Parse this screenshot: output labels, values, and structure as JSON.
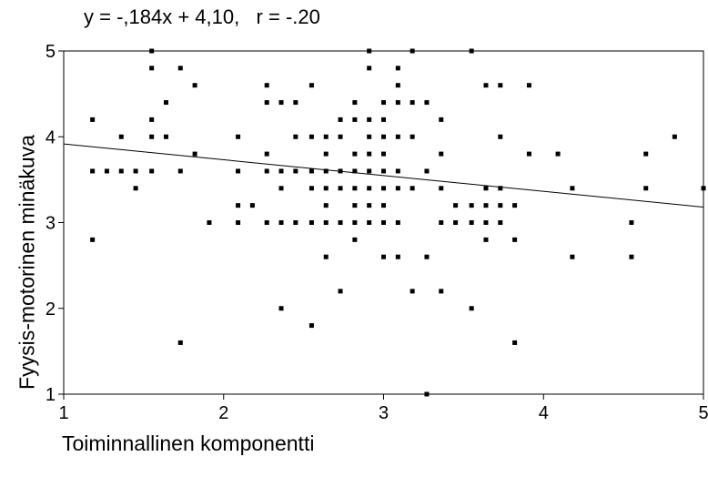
{
  "chart_data": {
    "type": "scatter",
    "title": "y = -,184x + 4,10,   r = -.20",
    "xlabel": "Toiminnallinen komponentti",
    "ylabel": "Fyysis-motorinen minäkuva",
    "xlim": [
      1,
      5
    ],
    "ylim": [
      1,
      5
    ],
    "x_ticks": [
      "1",
      "2",
      "3",
      "4",
      "5"
    ],
    "y_ticks": [
      "1",
      "2",
      "3",
      "4",
      "5"
    ],
    "grid": false,
    "regression": {
      "slope": -0.184,
      "intercept": 4.1
    },
    "points": [
      [
        1.18,
        4.2
      ],
      [
        1.18,
        3.6
      ],
      [
        1.18,
        2.8
      ],
      [
        1.27,
        3.6
      ],
      [
        1.36,
        4.0
      ],
      [
        1.36,
        3.6
      ],
      [
        1.45,
        3.6
      ],
      [
        1.45,
        3.4
      ],
      [
        1.55,
        5.0
      ],
      [
        1.55,
        4.8
      ],
      [
        1.55,
        4.2
      ],
      [
        1.55,
        4.0
      ],
      [
        1.55,
        3.6
      ],
      [
        1.64,
        4.4
      ],
      [
        1.64,
        4.0
      ],
      [
        1.73,
        4.8
      ],
      [
        1.73,
        3.6
      ],
      [
        1.73,
        1.6
      ],
      [
        1.82,
        4.6
      ],
      [
        1.82,
        3.8
      ],
      [
        1.91,
        3.0
      ],
      [
        2.09,
        4.0
      ],
      [
        2.09,
        3.6
      ],
      [
        2.09,
        3.2
      ],
      [
        2.09,
        3.0
      ],
      [
        2.18,
        3.2
      ],
      [
        2.27,
        4.6
      ],
      [
        2.27,
        4.4
      ],
      [
        2.27,
        3.8
      ],
      [
        2.27,
        3.6
      ],
      [
        2.27,
        3.0
      ],
      [
        2.36,
        4.4
      ],
      [
        2.36,
        3.6
      ],
      [
        2.36,
        3.4
      ],
      [
        2.36,
        3.0
      ],
      [
        2.36,
        2.0
      ],
      [
        2.45,
        4.4
      ],
      [
        2.45,
        4.0
      ],
      [
        2.45,
        3.6
      ],
      [
        2.45,
        3.0
      ],
      [
        2.55,
        4.6
      ],
      [
        2.55,
        4.0
      ],
      [
        2.55,
        3.6
      ],
      [
        2.55,
        3.4
      ],
      [
        2.55,
        3.0
      ],
      [
        2.55,
        1.8
      ],
      [
        2.64,
        4.0
      ],
      [
        2.64,
        3.8
      ],
      [
        2.64,
        3.6
      ],
      [
        2.64,
        3.4
      ],
      [
        2.64,
        3.2
      ],
      [
        2.64,
        3.0
      ],
      [
        2.64,
        2.6
      ],
      [
        2.73,
        4.2
      ],
      [
        2.73,
        4.0
      ],
      [
        2.73,
        3.6
      ],
      [
        2.73,
        3.4
      ],
      [
        2.73,
        3.0
      ],
      [
        2.73,
        2.2
      ],
      [
        2.82,
        4.4
      ],
      [
        2.82,
        4.2
      ],
      [
        2.82,
        3.8
      ],
      [
        2.82,
        3.6
      ],
      [
        2.82,
        3.4
      ],
      [
        2.82,
        3.2
      ],
      [
        2.82,
        3.0
      ],
      [
        2.82,
        2.8
      ],
      [
        2.91,
        5.0
      ],
      [
        2.91,
        4.8
      ],
      [
        2.91,
        4.2
      ],
      [
        2.91,
        4.0
      ],
      [
        2.91,
        3.8
      ],
      [
        2.91,
        3.6
      ],
      [
        2.91,
        3.4
      ],
      [
        2.91,
        3.2
      ],
      [
        2.91,
        3.0
      ],
      [
        3.0,
        4.4
      ],
      [
        3.0,
        4.2
      ],
      [
        3.0,
        4.0
      ],
      [
        3.0,
        3.8
      ],
      [
        3.0,
        3.6
      ],
      [
        3.0,
        3.4
      ],
      [
        3.0,
        3.2
      ],
      [
        3.0,
        3.0
      ],
      [
        3.0,
        2.6
      ],
      [
        3.09,
        4.8
      ],
      [
        3.09,
        4.6
      ],
      [
        3.09,
        4.4
      ],
      [
        3.09,
        4.0
      ],
      [
        3.09,
        3.6
      ],
      [
        3.09,
        3.4
      ],
      [
        3.09,
        3.0
      ],
      [
        3.09,
        2.6
      ],
      [
        3.18,
        5.0
      ],
      [
        3.18,
        4.4
      ],
      [
        3.18,
        4.0
      ],
      [
        3.18,
        3.4
      ],
      [
        3.18,
        2.2
      ],
      [
        3.27,
        4.4
      ],
      [
        3.27,
        3.6
      ],
      [
        3.27,
        2.6
      ],
      [
        3.27,
        1.0
      ],
      [
        3.36,
        4.2
      ],
      [
        3.36,
        3.8
      ],
      [
        3.36,
        3.4
      ],
      [
        3.36,
        3.0
      ],
      [
        3.36,
        2.2
      ],
      [
        3.45,
        3.2
      ],
      [
        3.45,
        3.0
      ],
      [
        3.55,
        5.0
      ],
      [
        3.55,
        3.2
      ],
      [
        3.55,
        3.0
      ],
      [
        3.55,
        2.0
      ],
      [
        3.64,
        4.6
      ],
      [
        3.64,
        3.4
      ],
      [
        3.64,
        3.2
      ],
      [
        3.64,
        3.0
      ],
      [
        3.64,
        2.8
      ],
      [
        3.73,
        4.6
      ],
      [
        3.73,
        4.0
      ],
      [
        3.73,
        3.4
      ],
      [
        3.73,
        3.2
      ],
      [
        3.73,
        3.0
      ],
      [
        3.82,
        3.2
      ],
      [
        3.82,
        2.8
      ],
      [
        3.82,
        1.6
      ],
      [
        3.91,
        4.6
      ],
      [
        3.91,
        3.8
      ],
      [
        4.09,
        3.8
      ],
      [
        4.18,
        3.4
      ],
      [
        4.18,
        2.6
      ],
      [
        4.55,
        3.0
      ],
      [
        4.55,
        2.6
      ],
      [
        4.64,
        3.8
      ],
      [
        4.64,
        3.4
      ],
      [
        4.82,
        4.0
      ],
      [
        5.0,
        3.4
      ]
    ]
  }
}
